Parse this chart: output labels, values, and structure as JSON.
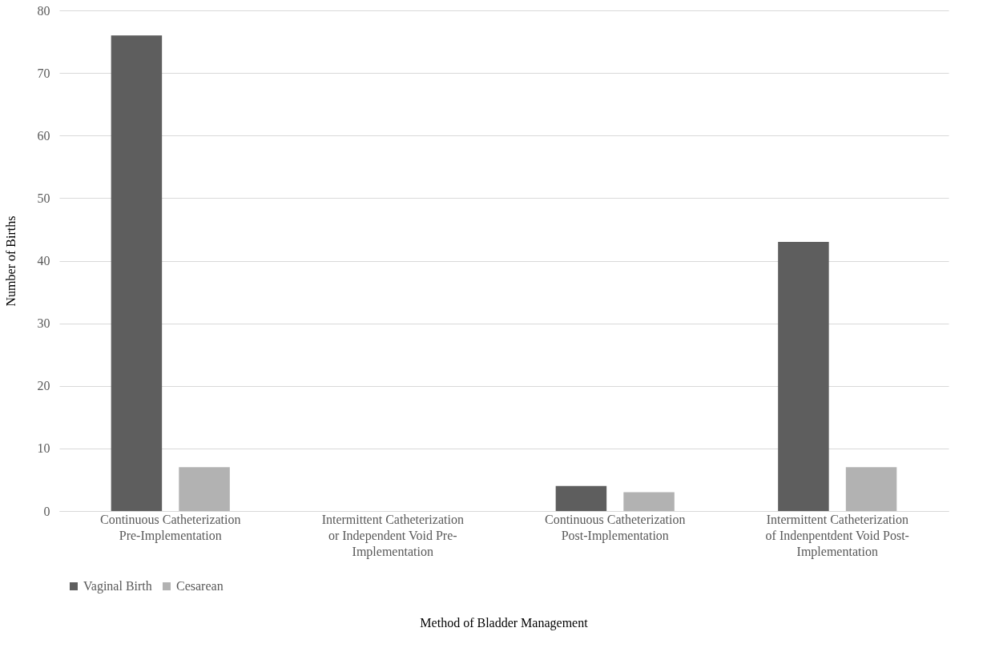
{
  "chart_data": {
    "type": "bar",
    "xlabel": "Method of Bladder Management",
    "ylabel": "Number of Births",
    "categories": [
      "Continuous Catheterization Pre-Implementation",
      "Intermittent Catheterization or Independent Void Pre-Implementation",
      "Continuous Catheterization Post-Implementation",
      "Intermittent Catheterization of Indenpentdent Void Post-Implementation"
    ],
    "series": [
      {
        "name": "Vaginal Birth",
        "color": "#5e5e5e",
        "values": [
          76,
          0,
          4,
          43
        ]
      },
      {
        "name": "Cesarean",
        "color": "#b2b2b2",
        "values": [
          7,
          0,
          3,
          7
        ]
      }
    ],
    "ylim": [
      0,
      80
    ],
    "yticks": [
      0,
      10,
      20,
      30,
      40,
      50,
      60,
      70,
      80
    ],
    "grid": "y",
    "legend": "bottom"
  }
}
